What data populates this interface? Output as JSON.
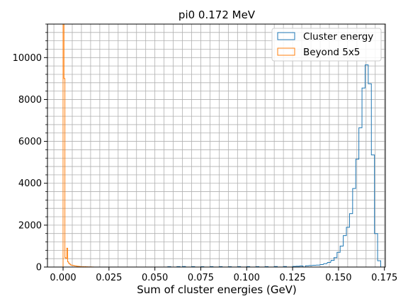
{
  "chart_data": {
    "type": "histogram",
    "title": "pi0 0.172 MeV",
    "xlabel": "Sum of cluster energies (GeV)",
    "ylabel": "",
    "xlim": [
      -0.0085,
      0.1755
    ],
    "ylim": [
      0,
      11600
    ],
    "grid": true,
    "legend_position": "top-right",
    "x_ticks": [
      0.0,
      0.025,
      0.05,
      0.075,
      0.1,
      0.125,
      0.15,
      0.175
    ],
    "x_tick_labels": [
      "0.000",
      "0.025",
      "0.050",
      "0.075",
      "0.100",
      "0.125",
      "0.150",
      "0.175"
    ],
    "y_ticks": [
      0,
      2000,
      4000,
      6000,
      8000,
      10000
    ],
    "y_tick_labels": [
      "0",
      "2000",
      "4000",
      "6000",
      "8000",
      "10000"
    ],
    "series": [
      {
        "name": "Cluster energy",
        "color": "#1f77b4",
        "bin_width": 0.00168,
        "bins": [
          [
            0.057,
            15
          ],
          [
            0.062,
            20
          ],
          [
            0.065,
            25
          ],
          [
            0.07,
            20
          ],
          [
            0.075,
            15
          ],
          [
            0.08,
            20
          ],
          [
            0.085,
            20
          ],
          [
            0.09,
            15
          ],
          [
            0.095,
            20
          ],
          [
            0.1,
            20
          ],
          [
            0.105,
            20
          ],
          [
            0.11,
            20
          ],
          [
            0.115,
            25
          ],
          [
            0.12,
            25
          ],
          [
            0.125,
            30
          ],
          [
            0.127,
            40
          ],
          [
            0.129,
            50
          ],
          [
            0.132,
            60
          ],
          [
            0.134,
            70
          ],
          [
            0.136,
            85
          ],
          [
            0.138,
            95
          ],
          [
            0.14,
            120
          ],
          [
            0.142,
            160
          ],
          [
            0.144,
            220
          ],
          [
            0.146,
            320
          ],
          [
            0.1475,
            450
          ],
          [
            0.1492,
            700
          ],
          [
            0.1509,
            1000
          ],
          [
            0.1526,
            1500
          ],
          [
            0.1543,
            1900
          ],
          [
            0.156,
            2550
          ],
          [
            0.1577,
            3750
          ],
          [
            0.1594,
            5150
          ],
          [
            0.1611,
            6650
          ],
          [
            0.1628,
            8550
          ],
          [
            0.1645,
            9650
          ],
          [
            0.1662,
            8750
          ],
          [
            0.1679,
            5350
          ],
          [
            0.1696,
            1600
          ],
          [
            0.1713,
            300
          ]
        ]
      },
      {
        "name": "Beyond 5x5",
        "color": "#ff7f0e",
        "bin_width": 0.0005,
        "bins": [
          [
            0.0,
            11600
          ],
          [
            0.0005,
            9000
          ],
          [
            0.001,
            450
          ],
          [
            0.0015,
            400
          ],
          [
            0.002,
            900
          ],
          [
            0.0025,
            250
          ],
          [
            0.003,
            180
          ],
          [
            0.0035,
            140
          ],
          [
            0.004,
            100
          ],
          [
            0.0045,
            90
          ],
          [
            0.005,
            80
          ],
          [
            0.0055,
            70
          ],
          [
            0.006,
            60
          ],
          [
            0.0065,
            50
          ],
          [
            0.007,
            45
          ],
          [
            0.0075,
            40
          ],
          [
            0.008,
            35
          ],
          [
            0.0085,
            30
          ],
          [
            0.009,
            25
          ],
          [
            0.01,
            20
          ],
          [
            0.011,
            18
          ],
          [
            0.012,
            15
          ],
          [
            0.013,
            12
          ],
          [
            0.014,
            10
          ],
          [
            0.015,
            8
          ],
          [
            0.016,
            5
          ]
        ]
      }
    ]
  }
}
